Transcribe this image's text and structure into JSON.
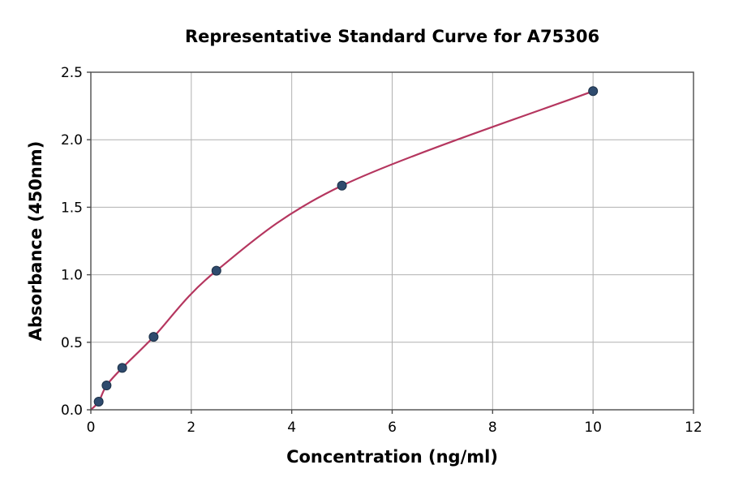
{
  "figure": {
    "background": "#ffffff"
  },
  "chart_data": {
    "type": "scatter",
    "title": "Representative Standard Curve for A75306",
    "xlabel": "Concentration (ng/ml)",
    "ylabel": "Absorbance (450nm)",
    "x": [
      0.156,
      0.313,
      0.625,
      1.25,
      2.5,
      5,
      10
    ],
    "y": [
      0.06,
      0.18,
      0.31,
      0.54,
      1.03,
      1.66,
      2.36
    ],
    "fit_curve": {
      "style": "smooth-saturation-curve-through-points",
      "start": [
        0,
        0
      ]
    },
    "xlim": [
      0,
      12
    ],
    "ylim": [
      0,
      2.5
    ],
    "xticks": [
      0,
      2,
      4,
      6,
      8,
      10,
      12
    ],
    "xtick_labels": [
      "0",
      "2",
      "4",
      "6",
      "8",
      "10",
      "12"
    ],
    "yticks": [
      0,
      0.5,
      1,
      1.5,
      2,
      2.5
    ],
    "ytick_labels": [
      "0.0",
      "0.5",
      "1.0",
      "1.5",
      "2.0",
      "2.5"
    ],
    "grid": true,
    "legend": null,
    "colors": {
      "curve": "#b5365f",
      "marker": "#2f4b6e",
      "marker_edge": "#1b3047",
      "grid": "#b0b0b0",
      "spine": "#4d4d4d",
      "text": "#000000"
    }
  }
}
